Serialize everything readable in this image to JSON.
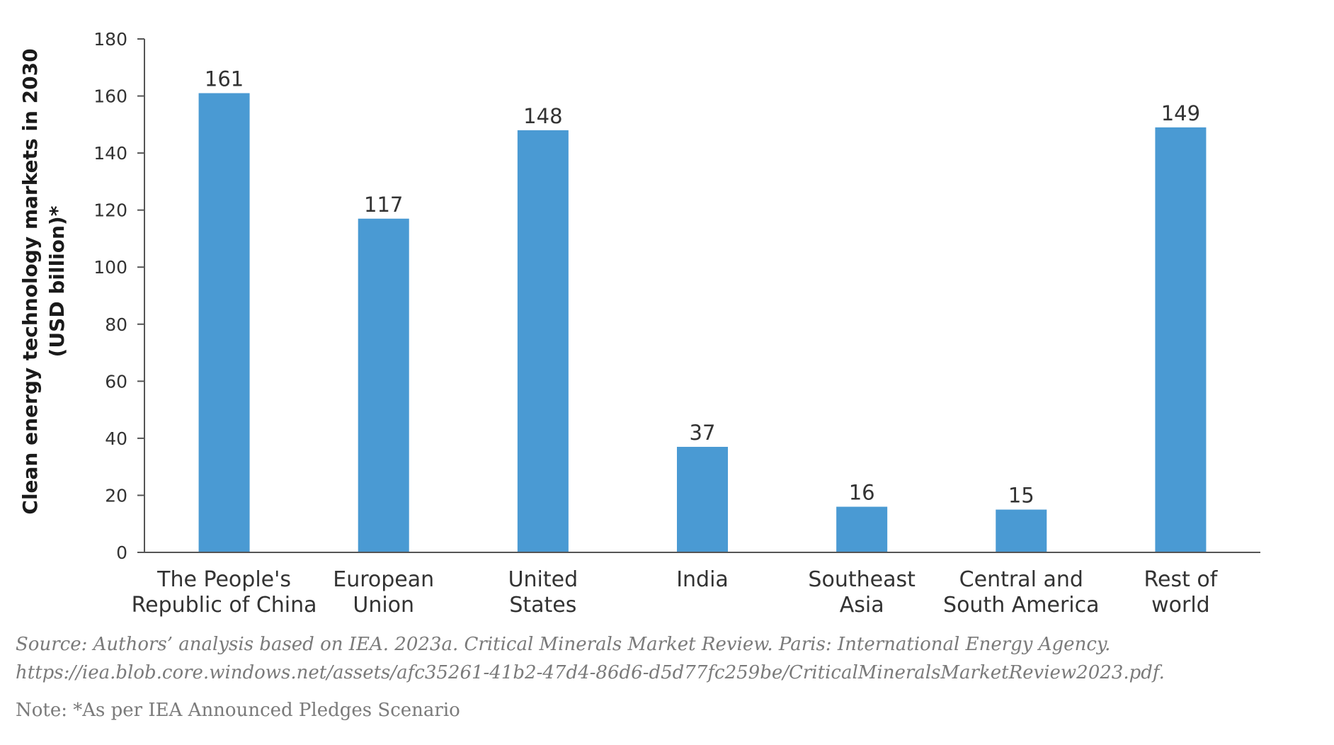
{
  "chart_data": {
    "type": "bar",
    "categories": [
      [
        "The People's",
        "Republic of China"
      ],
      [
        "European",
        "Union"
      ],
      [
        "United",
        "States"
      ],
      [
        "India"
      ],
      [
        "Southeast",
        "Asia"
      ],
      [
        "Central and",
        "South America"
      ],
      [
        "Rest of",
        "world"
      ]
    ],
    "values": [
      161,
      117,
      148,
      37,
      16,
      15,
      149
    ],
    "value_labels": [
      "161",
      "117",
      "148",
      "37",
      "16",
      "15",
      "149"
    ],
    "ylabel": [
      "Clean energy technology markets in 2030",
      "(USD billion)*"
    ],
    "ylim": [
      0,
      180
    ],
    "yticks": [
      0,
      20,
      40,
      60,
      80,
      100,
      120,
      140,
      160,
      180
    ],
    "ytick_labels": [
      "0",
      "20",
      "40",
      "60",
      "80",
      "100",
      "120",
      "140",
      "160",
      "180"
    ],
    "bar_color": "#4a9ad3",
    "axis_color": "#555555",
    "grid": false
  },
  "source": "Source: Authors’ analysis based on IEA. 2023a. Critical Minerals Market Review. Paris: International Energy Agency. https://iea.blob.core.windows.net/assets/afc35261-41b2-47d4-86d6-d5d77fc259be/CriticalMineralsMarketReview2023.pdf.",
  "note": "Note: *As per IEA Announced Pledges Scenario"
}
